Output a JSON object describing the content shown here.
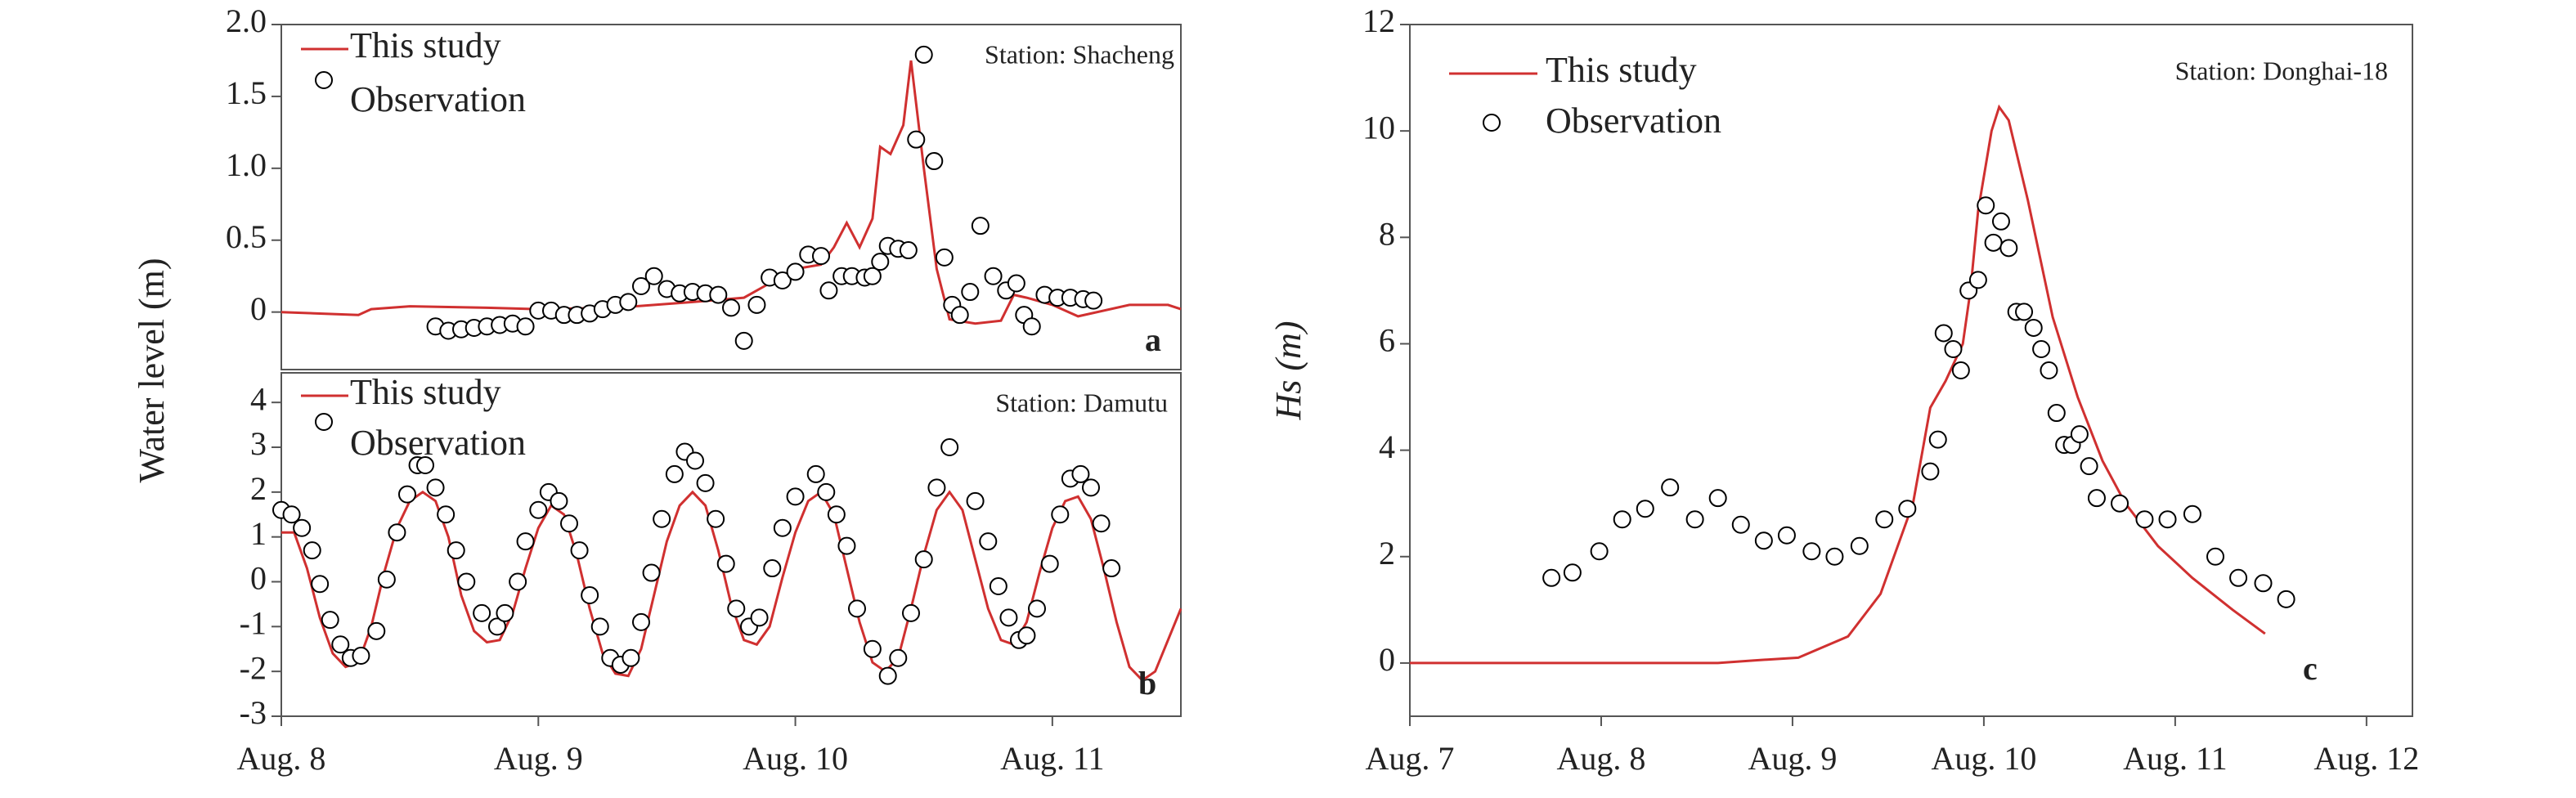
{
  "chart_data": [
    {
      "type": "line",
      "annotation": "Station: Shacheng",
      "panel_label": "a",
      "ylabel": "Water level (m)",
      "xlim": [
        8,
        11.5
      ],
      "ylim": [
        -0.4,
        2.0
      ],
      "yticks": [
        0,
        0.5,
        {
          "value": 1,
          "label": "1.0"
        },
        1.5,
        {
          "value": 2,
          "label": "2.0"
        }
      ],
      "series": [
        {
          "name": "This study",
          "type": "line",
          "color": "#d03030",
          "x": [
            8.0,
            8.3,
            8.35,
            8.5,
            8.8,
            9.0,
            9.3,
            9.6,
            9.8,
            9.9,
            10.0,
            10.1,
            10.15,
            10.2,
            10.25,
            10.3,
            10.33,
            10.37,
            10.42,
            10.45,
            10.5,
            10.55,
            10.6,
            10.7,
            10.8,
            10.85,
            10.9,
            11.0,
            11.1,
            11.3,
            11.45,
            11.5
          ],
          "values": [
            0,
            -0.02,
            0.02,
            0.04,
            0.03,
            0.02,
            0.03,
            0.07,
            0.1,
            0.2,
            0.3,
            0.33,
            0.45,
            0.62,
            0.45,
            0.65,
            1.15,
            1.1,
            1.3,
            1.75,
            1.0,
            0.3,
            -0.05,
            -0.08,
            -0.06,
            0.12,
            0.1,
            0.05,
            -0.03,
            0.05,
            0.05,
            0.02
          ]
        },
        {
          "name": "Observation",
          "type": "scatter",
          "color": "#000000",
          "x": [
            8.6,
            8.65,
            8.7,
            8.75,
            8.8,
            8.85,
            8.9,
            8.95,
            9.0,
            9.05,
            9.1,
            9.15,
            9.2,
            9.25,
            9.3,
            9.35,
            9.4,
            9.45,
            9.5,
            9.55,
            9.6,
            9.65,
            9.7,
            9.75,
            9.8,
            9.85,
            9.9,
            9.95,
            10.0,
            10.05,
            10.1,
            10.13,
            10.18,
            10.22,
            10.27,
            10.3,
            10.33,
            10.36,
            10.4,
            10.44,
            10.47,
            10.5,
            10.54,
            10.58,
            10.61,
            10.64,
            10.68,
            10.72,
            10.77,
            10.82,
            10.86,
            10.89,
            10.92,
            10.97,
            11.02,
            11.07,
            11.12,
            11.16
          ],
          "values": [
            -0.1,
            -0.13,
            -0.12,
            -0.11,
            -0.1,
            -0.09,
            -0.08,
            -0.1,
            0.01,
            0.01,
            -0.02,
            -0.02,
            -0.01,
            0.02,
            0.05,
            0.07,
            0.18,
            0.25,
            0.16,
            0.13,
            0.14,
            0.13,
            0.12,
            0.03,
            -0.2,
            0.05,
            0.24,
            0.22,
            0.28,
            0.4,
            0.39,
            0.15,
            0.25,
            0.25,
            0.24,
            0.25,
            0.35,
            0.46,
            0.44,
            0.43,
            1.2,
            1.79,
            1.05,
            0.38,
            0.05,
            -0.02,
            0.14,
            0.6,
            0.25,
            0.15,
            0.2,
            -0.02,
            -0.1,
            0.12,
            0.1,
            0.1,
            0.09,
            0.08
          ]
        }
      ]
    },
    {
      "type": "line",
      "annotation": "Station: Damutu",
      "panel_label": "b",
      "xlim": [
        8,
        11.5
      ],
      "ylim": [
        -3,
        4.66
      ],
      "xticks": [
        {
          "value": 8,
          "label": "Aug. 8"
        },
        {
          "value": 9,
          "label": "Aug. 9"
        },
        {
          "value": 10,
          "label": "Aug. 10"
        },
        {
          "value": 11,
          "label": "Aug. 11"
        }
      ],
      "yticks": [
        -3,
        -2,
        -1,
        0,
        1,
        2,
        3,
        4
      ],
      "series": [
        {
          "name": "This study",
          "type": "line",
          "color": "#d03030",
          "x": [
            8.0,
            8.05,
            8.1,
            8.15,
            8.2,
            8.25,
            8.3,
            8.35,
            8.4,
            8.45,
            8.5,
            8.55,
            8.6,
            8.65,
            8.7,
            8.75,
            8.8,
            8.85,
            8.9,
            8.95,
            9.0,
            9.05,
            9.1,
            9.15,
            9.2,
            9.25,
            9.3,
            9.35,
            9.4,
            9.45,
            9.5,
            9.55,
            9.6,
            9.65,
            9.7,
            9.75,
            9.8,
            9.85,
            9.9,
            9.95,
            10.0,
            10.05,
            10.1,
            10.15,
            10.2,
            10.25,
            10.3,
            10.35,
            10.4,
            10.45,
            10.5,
            10.55,
            10.6,
            10.65,
            10.7,
            10.75,
            10.8,
            10.85,
            10.9,
            10.95,
            11.0,
            11.05,
            11.1,
            11.15,
            11.2,
            11.25,
            11.3,
            11.35,
            11.4,
            11.45,
            11.5
          ],
          "values": [
            1.1,
            1.1,
            0.3,
            -0.8,
            -1.6,
            -1.9,
            -1.8,
            -1.0,
            0.2,
            1.2,
            1.8,
            2.0,
            1.8,
            1.0,
            -0.3,
            -1.1,
            -1.35,
            -1.3,
            -0.7,
            0.3,
            1.2,
            1.7,
            1.5,
            0.6,
            -0.6,
            -1.6,
            -2.05,
            -2.1,
            -1.5,
            -0.3,
            0.9,
            1.7,
            2.0,
            1.7,
            0.7,
            -0.5,
            -1.3,
            -1.4,
            -1.0,
            0.1,
            1.1,
            1.8,
            2.0,
            1.5,
            0.3,
            -0.9,
            -1.8,
            -2.0,
            -1.7,
            -0.6,
            0.6,
            1.6,
            2.0,
            1.6,
            0.5,
            -0.6,
            -1.3,
            -1.4,
            -0.9,
            0.2,
            1.2,
            1.8,
            1.9,
            1.4,
            0.3,
            -0.9,
            -1.9,
            -2.2,
            -2.0,
            -1.3,
            -0.6
          ]
        },
        {
          "name": "Observation",
          "type": "scatter",
          "color": "#000000",
          "x": [
            8.0,
            8.04,
            8.08,
            8.12,
            8.15,
            8.19,
            8.23,
            8.27,
            8.31,
            8.37,
            8.41,
            8.45,
            8.49,
            8.53,
            8.56,
            8.6,
            8.64,
            8.68,
            8.72,
            8.78,
            8.84,
            8.87,
            8.92,
            8.95,
            9.0,
            9.04,
            9.08,
            9.12,
            9.16,
            9.2,
            9.24,
            9.28,
            9.32,
            9.36,
            9.4,
            9.44,
            9.48,
            9.53,
            9.57,
            9.61,
            9.65,
            9.69,
            9.73,
            9.77,
            9.82,
            9.86,
            9.91,
            9.95,
            10.0,
            10.08,
            10.12,
            10.16,
            10.2,
            10.24,
            10.3,
            10.36,
            10.4,
            10.45,
            10.5,
            10.55,
            10.6,
            10.7,
            10.75,
            10.79,
            10.83,
            10.87,
            10.9,
            10.94,
            10.99,
            11.03,
            11.07,
            11.11,
            11.15,
            11.19,
            11.23
          ],
          "values": [
            1.6,
            1.5,
            1.2,
            0.7,
            -0.05,
            -0.85,
            -1.4,
            -1.7,
            -1.65,
            -1.1,
            0.05,
            1.1,
            1.95,
            2.6,
            2.6,
            2.1,
            1.5,
            0.7,
            0.0,
            -0.7,
            -1.0,
            -0.7,
            0.0,
            0.9,
            1.6,
            2.0,
            1.8,
            1.3,
            0.7,
            -0.3,
            -1.0,
            -1.7,
            -1.85,
            -1.7,
            -0.9,
            0.2,
            1.4,
            2.4,
            2.9,
            2.7,
            2.2,
            1.4,
            0.4,
            -0.6,
            -1.0,
            -0.8,
            0.3,
            1.2,
            1.9,
            2.4,
            2.0,
            1.5,
            0.8,
            -0.6,
            -1.5,
            -2.1,
            -1.7,
            -0.7,
            0.5,
            2.1,
            3.0,
            1.8,
            0.9,
            -0.1,
            -0.8,
            -1.3,
            -1.2,
            -0.6,
            0.4,
            1.5,
            2.3,
            2.4,
            2.1,
            1.3,
            0.3
          ]
        }
      ]
    },
    {
      "type": "line",
      "annotation": "Station: Donghai-18",
      "panel_label": "c",
      "ylabel": "Hs (m)",
      "xlim": [
        7,
        12.24
      ],
      "ylim": [
        -1,
        12
      ],
      "xticks": [
        {
          "value": 7,
          "label": "Aug. 7"
        },
        {
          "value": 8,
          "label": "Aug. 8"
        },
        {
          "value": 9,
          "label": "Aug. 9"
        },
        {
          "value": 10,
          "label": "Aug. 10"
        },
        {
          "value": 11,
          "label": "Aug. 11"
        },
        {
          "value": 12,
          "label": "Aug. 12"
        }
      ],
      "yticks": [
        0,
        2,
        4,
        6,
        8,
        10,
        12
      ],
      "series": [
        {
          "name": "This study",
          "type": "line",
          "color": "#d03030",
          "x": [
            7.0,
            8.0,
            8.61,
            8.8,
            9.03,
            9.29,
            9.46,
            9.63,
            9.72,
            9.8,
            9.89,
            9.93,
            9.97,
            10.04,
            10.08,
            10.13,
            10.23,
            10.36,
            10.49,
            10.62,
            10.74,
            10.91,
            11.09,
            11.3,
            11.47
          ],
          "values": [
            0,
            0,
            0,
            0.05,
            0.1,
            0.5,
            1.3,
            3.0,
            4.8,
            5.3,
            6.0,
            7.0,
            8.5,
            10.0,
            10.45,
            10.2,
            8.7,
            6.5,
            5.0,
            3.8,
            3.0,
            2.2,
            1.6,
            1.0,
            0.55
          ]
        },
        {
          "name": "Observation",
          "type": "scatter",
          "color": "#000000",
          "x": [
            7.74,
            7.85,
            7.99,
            8.11,
            8.23,
            8.36,
            8.49,
            8.61,
            8.73,
            8.85,
            8.97,
            9.1,
            9.22,
            9.35,
            9.48,
            9.6,
            9.72,
            9.76,
            9.79,
            9.84,
            9.88,
            9.92,
            9.97,
            10.01,
            10.05,
            10.09,
            10.13,
            10.17,
            10.21,
            10.26,
            10.3,
            10.34,
            10.38,
            10.42,
            10.46,
            10.5,
            10.55,
            10.59,
            10.71,
            10.84,
            10.96,
            11.09,
            11.21,
            11.33,
            11.46,
            11.58
          ],
          "values": [
            1.6,
            1.7,
            2.1,
            2.7,
            2.9,
            3.3,
            2.7,
            3.1,
            2.6,
            2.3,
            2.4,
            2.1,
            2.0,
            2.2,
            2.7,
            2.9,
            3.6,
            4.2,
            6.2,
            5.9,
            5.5,
            7.0,
            7.2,
            8.6,
            7.9,
            8.3,
            7.8,
            6.6,
            6.6,
            6.3,
            5.9,
            5.5,
            4.7,
            4.1,
            4.1,
            4.3,
            3.7,
            3.1,
            3.0,
            2.7,
            2.7,
            2.8,
            2.0,
            1.6,
            1.5,
            1.2
          ]
        }
      ]
    }
  ]
}
